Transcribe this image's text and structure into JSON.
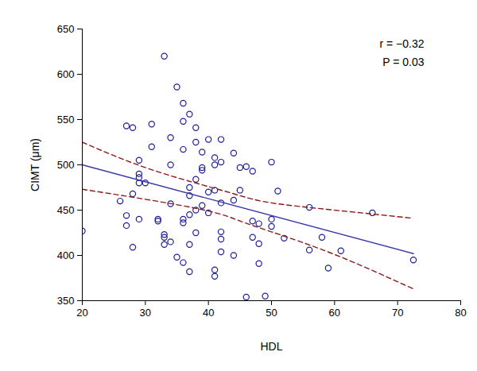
{
  "chart_data": {
    "type": "scatter",
    "x_label": "HDL",
    "y_label": "CIMT (μm)",
    "annotations": [
      "r = −0.32",
      "P = 0.03"
    ],
    "xlim": [
      20,
      80
    ],
    "xticks": [
      20,
      30,
      40,
      50,
      60,
      70,
      80
    ],
    "ylim": [
      350,
      650
    ],
    "yticks": [
      350,
      400,
      450,
      500,
      550,
      600,
      650
    ],
    "grid": false,
    "marker": "open circle",
    "color": "#1c1c96",
    "x": [
      20,
      26,
      27,
      27,
      27,
      28,
      28,
      28,
      29,
      29,
      29,
      29,
      29,
      30,
      31,
      31,
      32,
      32,
      33,
      33,
      33,
      33,
      34,
      34,
      34,
      34,
      35,
      35,
      36,
      36,
      36,
      36,
      36,
      36,
      37,
      37,
      37,
      37,
      37,
      37,
      38,
      38,
      38,
      38,
      38,
      39,
      39,
      39,
      39,
      40,
      40,
      40,
      41,
      41,
      41,
      41,
      41,
      42,
      42,
      42,
      42,
      42,
      42,
      44,
      44,
      44,
      45,
      45,
      46,
      46,
      47,
      47,
      47,
      48,
      48,
      48,
      49,
      50,
      50,
      50,
      51,
      52,
      56,
      56,
      58,
      59,
      61,
      66,
      72.5
    ],
    "values": [
      427,
      460,
      543,
      444,
      433,
      541,
      468,
      409,
      505,
      490,
      486,
      480,
      440,
      480,
      545,
      520,
      440,
      438,
      620,
      423,
      412,
      420,
      530,
      500,
      415,
      457,
      586,
      398,
      568,
      548,
      517,
      440,
      436,
      392,
      556,
      475,
      466,
      445,
      412,
      382,
      541,
      525,
      484,
      450,
      425,
      514,
      497,
      494,
      455,
      528,
      447,
      470,
      500,
      508,
      472,
      384,
      377,
      528,
      503,
      458,
      426,
      418,
      404,
      513,
      461,
      400,
      497,
      472,
      498,
      354,
      493,
      438,
      420,
      435,
      413,
      391,
      355,
      503,
      440,
      432,
      471,
      419,
      453,
      406,
      420,
      386,
      405,
      447,
      395
    ],
    "fit_line": {
      "x": [
        20,
        72.5
      ],
      "values": [
        500,
        402
      ],
      "color": "#3a3aa8",
      "line_style": "solid"
    },
    "confidence_band": {
      "x": [
        20,
        30,
        40,
        45,
        50,
        60,
        72.5
      ],
      "upper": [
        525,
        497,
        476,
        466,
        458,
        450,
        441
      ],
      "lower": [
        473,
        462,
        449,
        438,
        426,
        401,
        363
      ],
      "color": "#8b1a1a",
      "line_style": "dashed"
    }
  }
}
